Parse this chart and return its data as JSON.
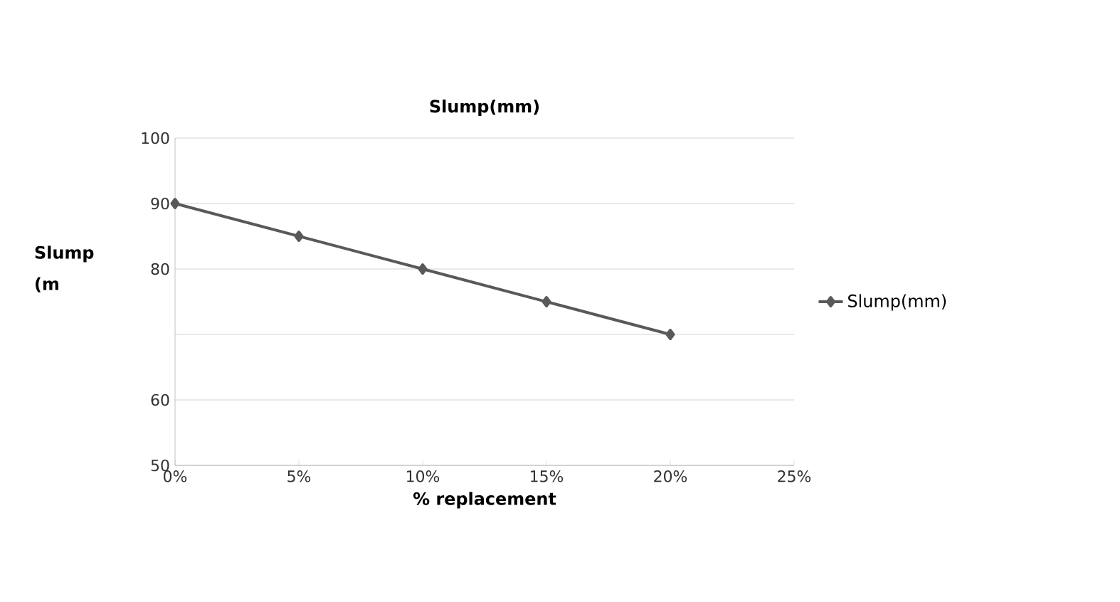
{
  "chart_data": {
    "type": "line",
    "title": "Slump(mm)",
    "xlabel": "% replacement",
    "ylabel": "Slump (m",
    "x": [
      0,
      5,
      10,
      15,
      20
    ],
    "series": [
      {
        "name": "Slump(mm)",
        "color": "#595959",
        "values": [
          90,
          85,
          80,
          75,
          70
        ]
      }
    ],
    "xlim": [
      0,
      25
    ],
    "xticks": [
      {
        "value": 0,
        "label": "0%"
      },
      {
        "value": 5,
        "label": "5%"
      },
      {
        "value": 10,
        "label": "10%"
      },
      {
        "value": 15,
        "label": "15%"
      },
      {
        "value": 20,
        "label": "20%"
      },
      {
        "value": 25,
        "label": "25%"
      }
    ],
    "ylim": [
      50,
      100
    ],
    "yticks": [
      50,
      60,
      {
        "value": 70,
        "label": null
      },
      80,
      90,
      100
    ],
    "grid": "y",
    "legend": "right",
    "marker": "diamond",
    "line_style": "solid"
  }
}
